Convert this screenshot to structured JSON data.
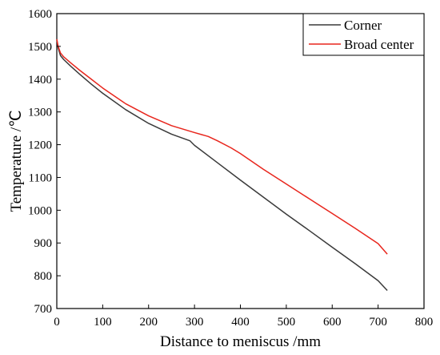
{
  "chart_data": {
    "type": "line",
    "xlabel": "Distance to meniscus /mm",
    "ylabel": "Temperature /℃",
    "xlim": [
      0,
      800
    ],
    "ylim": [
      700,
      1600
    ],
    "xticks": [
      0,
      100,
      200,
      300,
      400,
      500,
      600,
      700,
      800
    ],
    "yticks": [
      700,
      800,
      900,
      1000,
      1100,
      1200,
      1300,
      1400,
      1500,
      1600
    ],
    "grid": false,
    "legend_position": "top-right",
    "series": [
      {
        "name": "Corner",
        "color": "#3a3a3a",
        "x": [
          0,
          3,
          8,
          15,
          30,
          50,
          75,
          100,
          150,
          200,
          250,
          290,
          300,
          350,
          400,
          450,
          500,
          550,
          600,
          650,
          700,
          720
        ],
        "y": [
          1520,
          1495,
          1472,
          1460,
          1440,
          1415,
          1385,
          1357,
          1307,
          1265,
          1232,
          1212,
          1198,
          1145,
          1092,
          1040,
          988,
          938,
          887,
          837,
          785,
          755
        ]
      },
      {
        "name": "Broad center",
        "color": "#e8261d",
        "x": [
          0,
          3,
          8,
          15,
          30,
          50,
          75,
          100,
          150,
          200,
          250,
          300,
          330,
          350,
          380,
          400,
          450,
          500,
          550,
          600,
          650,
          700,
          720
        ],
        "y": [
          1522,
          1500,
          1480,
          1468,
          1450,
          1427,
          1400,
          1373,
          1325,
          1288,
          1258,
          1237,
          1225,
          1212,
          1190,
          1173,
          1125,
          1080,
          1035,
          990,
          945,
          898,
          866
        ]
      }
    ]
  }
}
